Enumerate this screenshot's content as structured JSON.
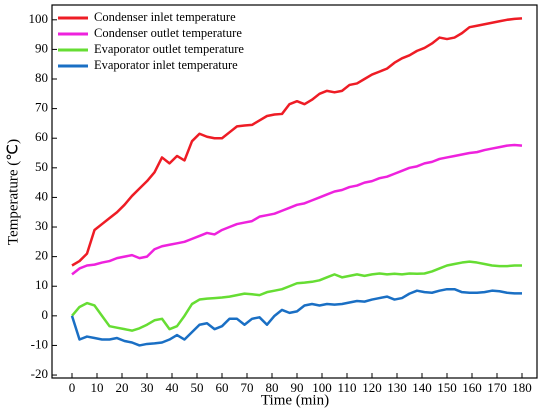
{
  "chart_data": {
    "type": "line",
    "xlabel": "Time (min)",
    "ylabel": "Temperature (℃)",
    "x": [
      0,
      3,
      6,
      9,
      12,
      15,
      18,
      21,
      24,
      27,
      30,
      33,
      36,
      39,
      42,
      45,
      48,
      51,
      54,
      57,
      60,
      63,
      66,
      69,
      72,
      75,
      78,
      81,
      84,
      87,
      90,
      93,
      96,
      99,
      102,
      105,
      108,
      111,
      114,
      117,
      120,
      123,
      126,
      129,
      132,
      135,
      138,
      141,
      144,
      147,
      150,
      153,
      156,
      159,
      162,
      165,
      168,
      171,
      174,
      177,
      180
    ],
    "series": [
      {
        "name": "Condenser inlet temperature",
        "color": "#ee1c25",
        "values": [
          17,
          18.5,
          21,
          29,
          31,
          33,
          35,
          37.5,
          40.5,
          43,
          45.5,
          48.5,
          53.5,
          51.5,
          54,
          52.5,
          59,
          61.5,
          60.5,
          60,
          60,
          62,
          64,
          64.3,
          64.5,
          66,
          67.5,
          68,
          68.2,
          71.5,
          72.5,
          71.5,
          73,
          75,
          76,
          75.5,
          76,
          78,
          78.5,
          80,
          81.5,
          82.5,
          83.5,
          85.5,
          87,
          88,
          89.5,
          90.5,
          92,
          94,
          93.5,
          94,
          95.5,
          97.5,
          98,
          98.5,
          99,
          99.5,
          100,
          100.3,
          100.5
        ]
      },
      {
        "name": "Condenser outlet temperature",
        "color": "#ee22dd",
        "values": [
          14,
          16,
          17,
          17.3,
          18,
          18.5,
          19.5,
          20,
          20.5,
          19.5,
          20,
          22.5,
          23.5,
          24,
          24.5,
          25,
          26,
          27,
          28,
          27.5,
          29,
          30,
          31,
          31.5,
          32,
          33.5,
          34,
          34.5,
          35.5,
          36.5,
          37.5,
          38,
          39,
          40,
          41,
          42,
          42.5,
          43.5,
          44,
          45,
          45.5,
          46.5,
          47,
          48,
          49,
          50,
          50.5,
          51.5,
          52,
          53,
          53.5,
          54,
          54.5,
          55,
          55.3,
          56,
          56.5,
          57,
          57.5,
          57.7,
          57.5
        ]
      },
      {
        "name": "Evaporator outlet temperature",
        "color": "#66dd33",
        "values": [
          0,
          3,
          4.3,
          3.5,
          0,
          -3.5,
          -4,
          -4.5,
          -5,
          -4.2,
          -3,
          -1.5,
          -1,
          -4.5,
          -3.5,
          0,
          4,
          5.5,
          5.8,
          6,
          6.2,
          6.5,
          7,
          7.5,
          7.3,
          7,
          8,
          8.5,
          9,
          10,
          11,
          11.2,
          11.5,
          12,
          13,
          14,
          13,
          13.5,
          14,
          13.5,
          14,
          14.3,
          14,
          14.2,
          14,
          14.3,
          14.2,
          14.3,
          15,
          16,
          17,
          17.5,
          18,
          18.3,
          18,
          17.5,
          17,
          16.8,
          16.8,
          17,
          17
        ]
      },
      {
        "name": "Evaporator inlet temperature",
        "color": "#1a6fc4",
        "values": [
          0,
          -8,
          -7,
          -7.5,
          -8,
          -8,
          -7.5,
          -8.5,
          -9,
          -10,
          -9.5,
          -9.3,
          -9,
          -8,
          -6.5,
          -8,
          -5.5,
          -3,
          -2.5,
          -4.5,
          -3.5,
          -1,
          -1,
          -3,
          -1,
          -0.5,
          -3,
          0,
          2,
          1,
          1.5,
          3.5,
          4,
          3.5,
          4,
          3.8,
          4,
          4.5,
          5,
          4.8,
          5.5,
          6,
          6.5,
          5.5,
          6,
          7.5,
          8.5,
          8,
          7.8,
          8.5,
          9,
          9,
          8,
          7.8,
          7.8,
          8,
          8.5,
          8.3,
          7.8,
          7.6,
          7.6
        ]
      }
    ],
    "xlim": [
      -8,
      186
    ],
    "xticks": [
      0,
      10,
      20,
      30,
      40,
      50,
      60,
      70,
      80,
      90,
      100,
      110,
      120,
      130,
      140,
      150,
      160,
      170,
      180
    ],
    "ylim": [
      -21,
      105
    ],
    "yticks": [
      -20,
      -10,
      0,
      10,
      20,
      30,
      40,
      50,
      60,
      70,
      80,
      90,
      100
    ],
    "legend": "upper left"
  }
}
